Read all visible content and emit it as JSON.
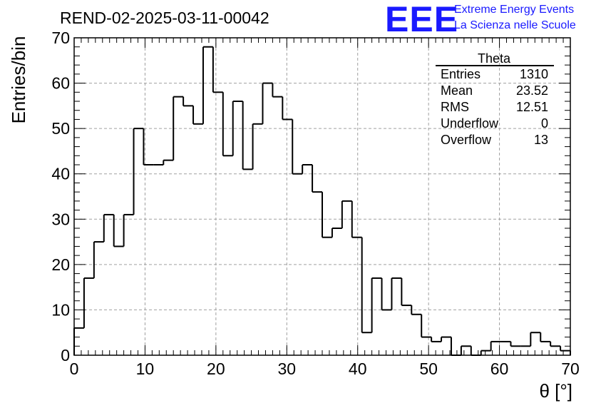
{
  "header": {
    "run_title": "REND-02-2025-03-11-00042",
    "logo_text": "EEE",
    "logo_line1": "Extreme Energy Events",
    "logo_line2": "La Scienza nelle Scuole"
  },
  "stats_box": {
    "title": "Theta",
    "rows": [
      {
        "label": "Entries",
        "value": "1310"
      },
      {
        "label": "Mean",
        "value": "23.52"
      },
      {
        "label": "RMS",
        "value": "12.51"
      },
      {
        "label": "Underflow",
        "value": "0"
      },
      {
        "label": "Overflow",
        "value": "13"
      }
    ]
  },
  "chart_data": {
    "type": "histogram",
    "title": "",
    "xlabel": "θ [°]",
    "ylabel": "Entries/bin",
    "xlim": [
      0,
      70
    ],
    "ylim": [
      0,
      70
    ],
    "xticks": [
      0,
      10,
      20,
      30,
      40,
      50,
      60,
      70
    ],
    "yticks": [
      0,
      10,
      20,
      30,
      40,
      50,
      60,
      70
    ],
    "grid": true,
    "bin_width": 1.4,
    "bin_edges_start": 0,
    "values": [
      6,
      17,
      25,
      31,
      24,
      31,
      50,
      42,
      42,
      43,
      57,
      55,
      51,
      68,
      58,
      44,
      56,
      41,
      51,
      60,
      57,
      52,
      40,
      42,
      36,
      26,
      28,
      34,
      26,
      5,
      17,
      10,
      17,
      11,
      9,
      4,
      3,
      4,
      0,
      2,
      0,
      1,
      3,
      3,
      2,
      2,
      5,
      3,
      2,
      1
    ]
  }
}
